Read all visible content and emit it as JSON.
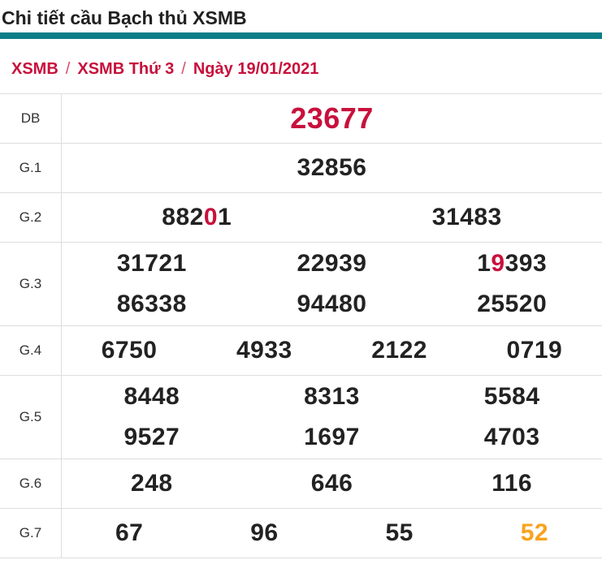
{
  "page": {
    "title": "Chi tiết cầu Bạch thủ XSMB"
  },
  "breadcrumb": {
    "separator": "/",
    "items": [
      "XSMB",
      "XSMB Thứ 3",
      "Ngày 19/01/2021"
    ]
  },
  "results": {
    "rows": [
      {
        "label": "DB",
        "size": "xl",
        "lines": [
          [
            [
              {
                "t": "23677",
                "c": "red"
              }
            ]
          ]
        ]
      },
      {
        "label": "G.1",
        "lines": [
          [
            [
              {
                "t": "32856"
              }
            ]
          ]
        ]
      },
      {
        "label": "G.2",
        "lines": [
          [
            [
              {
                "t": "882"
              },
              {
                "t": "0",
                "c": "red"
              },
              {
                "t": "1"
              }
            ],
            [
              {
                "t": "31483"
              }
            ]
          ]
        ]
      },
      {
        "label": "G.3",
        "lines": [
          [
            [
              {
                "t": "31721"
              }
            ],
            [
              {
                "t": "22939"
              }
            ],
            [
              {
                "t": "1"
              },
              {
                "t": "9",
                "c": "red"
              },
              {
                "t": "393"
              }
            ]
          ],
          [
            [
              {
                "t": "86338"
              }
            ],
            [
              {
                "t": "94480"
              }
            ],
            [
              {
                "t": "25520"
              }
            ]
          ]
        ]
      },
      {
        "label": "G.4",
        "lines": [
          [
            [
              {
                "t": "6750"
              }
            ],
            [
              {
                "t": "4933"
              }
            ],
            [
              {
                "t": "2122"
              }
            ],
            [
              {
                "t": "0719"
              }
            ]
          ]
        ]
      },
      {
        "label": "G.5",
        "lines": [
          [
            [
              {
                "t": "8448"
              }
            ],
            [
              {
                "t": "8313"
              }
            ],
            [
              {
                "t": "5584"
              }
            ]
          ],
          [
            [
              {
                "t": "9527"
              }
            ],
            [
              {
                "t": "1697"
              }
            ],
            [
              {
                "t": "4703"
              }
            ]
          ]
        ]
      },
      {
        "label": "G.6",
        "lines": [
          [
            [
              {
                "t": "248"
              }
            ],
            [
              {
                "t": "646"
              }
            ],
            [
              {
                "t": "116"
              }
            ]
          ]
        ]
      },
      {
        "label": "G.7",
        "lines": [
          [
            [
              {
                "t": "67"
              }
            ],
            [
              {
                "t": "96"
              }
            ],
            [
              {
                "t": "55"
              }
            ],
            [
              {
                "t": "52",
                "c": "orange"
              }
            ]
          ]
        ]
      }
    ]
  },
  "colors": {
    "accent_red": "#c8103c",
    "accent_orange": "#f9a21d",
    "divider_teal": "#0d7e87",
    "border_gray": "#dddddd",
    "value_dark": "#222222"
  }
}
